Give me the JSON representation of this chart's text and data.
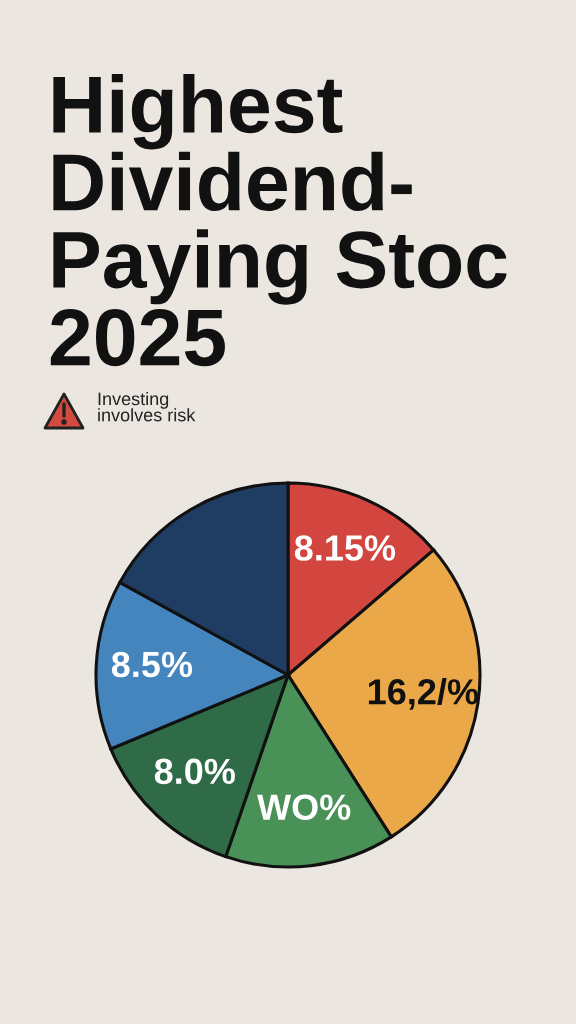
{
  "chart_data": {
    "type": "pie",
    "title": "Highest\nDividend-\nPaying Stoc\n2025",
    "categories": [
      null,
      null,
      null,
      null,
      null,
      null
    ],
    "values": [
      8.15,
      16.2,
      8.5,
      8.0,
      8.5,
      10.1
    ],
    "colors": [
      "#d2463f",
      "#eaa849",
      "#4a9158",
      "#2f6b47",
      "#4585bd",
      "#1f3c63"
    ],
    "value_labels": [
      "8.15%",
      "16,2/%",
      "WO%",
      "8.0%",
      "8.5%",
      null
    ],
    "annotations": [
      "Investing\ninvolves risk"
    ]
  }
}
